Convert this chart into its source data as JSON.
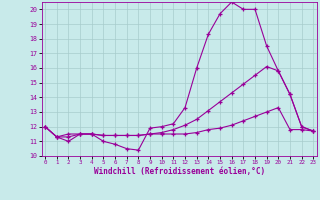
{
  "bg_color": "#c8eaea",
  "line_color": "#990099",
  "grid_color": "#a8cccc",
  "xlim": [
    -0.3,
    23.3
  ],
  "ylim": [
    10,
    20.5
  ],
  "yticks": [
    10,
    11,
    12,
    13,
    14,
    15,
    16,
    17,
    18,
    19,
    20
  ],
  "xticks": [
    0,
    1,
    2,
    3,
    4,
    5,
    6,
    7,
    8,
    9,
    10,
    11,
    12,
    13,
    14,
    15,
    16,
    17,
    18,
    19,
    20,
    21,
    22,
    23
  ],
  "xlabel": "Windchill (Refroidissement éolien,°C)",
  "line1_x": [
    0,
    1,
    2,
    3,
    4,
    5,
    6,
    7,
    8,
    9,
    10,
    11,
    12,
    13,
    14,
    15,
    16,
    17,
    18,
    19,
    20,
    21,
    22,
    23
  ],
  "line1_y": [
    12.0,
    11.3,
    11.0,
    11.5,
    11.5,
    11.0,
    10.8,
    10.5,
    10.4,
    11.9,
    12.0,
    12.2,
    13.3,
    16.0,
    18.3,
    19.7,
    20.5,
    20.0,
    20.0,
    17.5,
    15.8,
    14.2,
    12.0,
    11.7
  ],
  "line2_x": [
    0,
    1,
    2,
    3,
    4,
    5,
    6,
    7,
    8,
    9,
    10,
    11,
    12,
    13,
    14,
    15,
    16,
    17,
    18,
    19,
    20,
    21,
    22,
    23
  ],
  "line2_y": [
    12.0,
    11.3,
    11.5,
    11.5,
    11.5,
    11.4,
    11.4,
    11.4,
    11.4,
    11.5,
    11.6,
    11.8,
    12.1,
    12.5,
    13.1,
    13.7,
    14.3,
    14.9,
    15.5,
    16.1,
    15.8,
    14.2,
    12.0,
    11.7
  ],
  "line3_x": [
    0,
    1,
    2,
    3,
    4,
    5,
    6,
    7,
    8,
    9,
    10,
    11,
    12,
    13,
    14,
    15,
    16,
    17,
    18,
    19,
    20,
    21,
    22,
    23
  ],
  "line3_y": [
    12.0,
    11.3,
    11.3,
    11.5,
    11.5,
    11.4,
    11.4,
    11.4,
    11.4,
    11.5,
    11.5,
    11.5,
    11.5,
    11.6,
    11.8,
    11.9,
    12.1,
    12.4,
    12.7,
    13.0,
    13.3,
    11.8,
    11.8,
    11.7
  ]
}
